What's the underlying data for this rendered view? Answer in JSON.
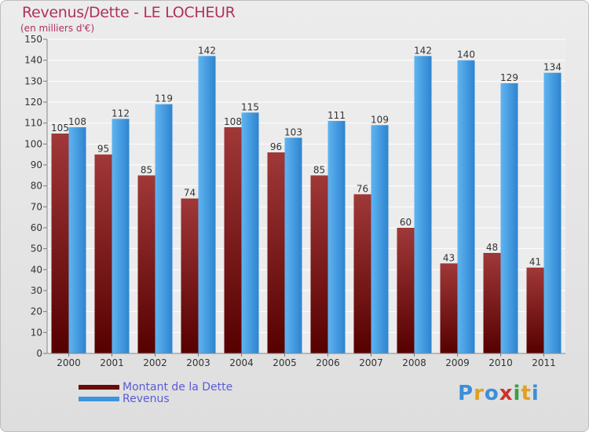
{
  "header": {
    "title": "Revenus/Dette - LE LOCHEUR",
    "subtitle": "(en milliers d'€)"
  },
  "legend": [
    {
      "label": "Montant de la Dette",
      "color": "#6b0a0a"
    },
    {
      "label": "Revenus",
      "color": "#3d95e0"
    }
  ],
  "logo": {
    "letters": [
      "P",
      "r",
      "o",
      "x",
      "i",
      "t",
      "i"
    ],
    "colors": [
      "#3a8fd8",
      "#e0a020",
      "#3a8fd8",
      "#d0302a",
      "#3aa040",
      "#e0a020",
      "#3a8fd8"
    ]
  },
  "chart_data": {
    "type": "bar",
    "categories": [
      "2000",
      "2001",
      "2002",
      "2003",
      "2004",
      "2005",
      "2006",
      "2007",
      "2008",
      "2009",
      "2010",
      "2011"
    ],
    "series": [
      {
        "name": "Montant de la Dette",
        "values": [
          105,
          95,
          85,
          74,
          108,
          96,
          85,
          76,
          60,
          43,
          48,
          41
        ]
      },
      {
        "name": "Revenus",
        "values": [
          108,
          112,
          119,
          142,
          115,
          103,
          111,
          109,
          142,
          140,
          129,
          134
        ]
      }
    ],
    "ylim": [
      0,
      150
    ],
    "yticks": [
      0,
      10,
      20,
      30,
      40,
      50,
      60,
      70,
      80,
      90,
      100,
      110,
      120,
      130,
      140,
      150
    ],
    "grid": true,
    "legend_position": "bottom-left"
  }
}
